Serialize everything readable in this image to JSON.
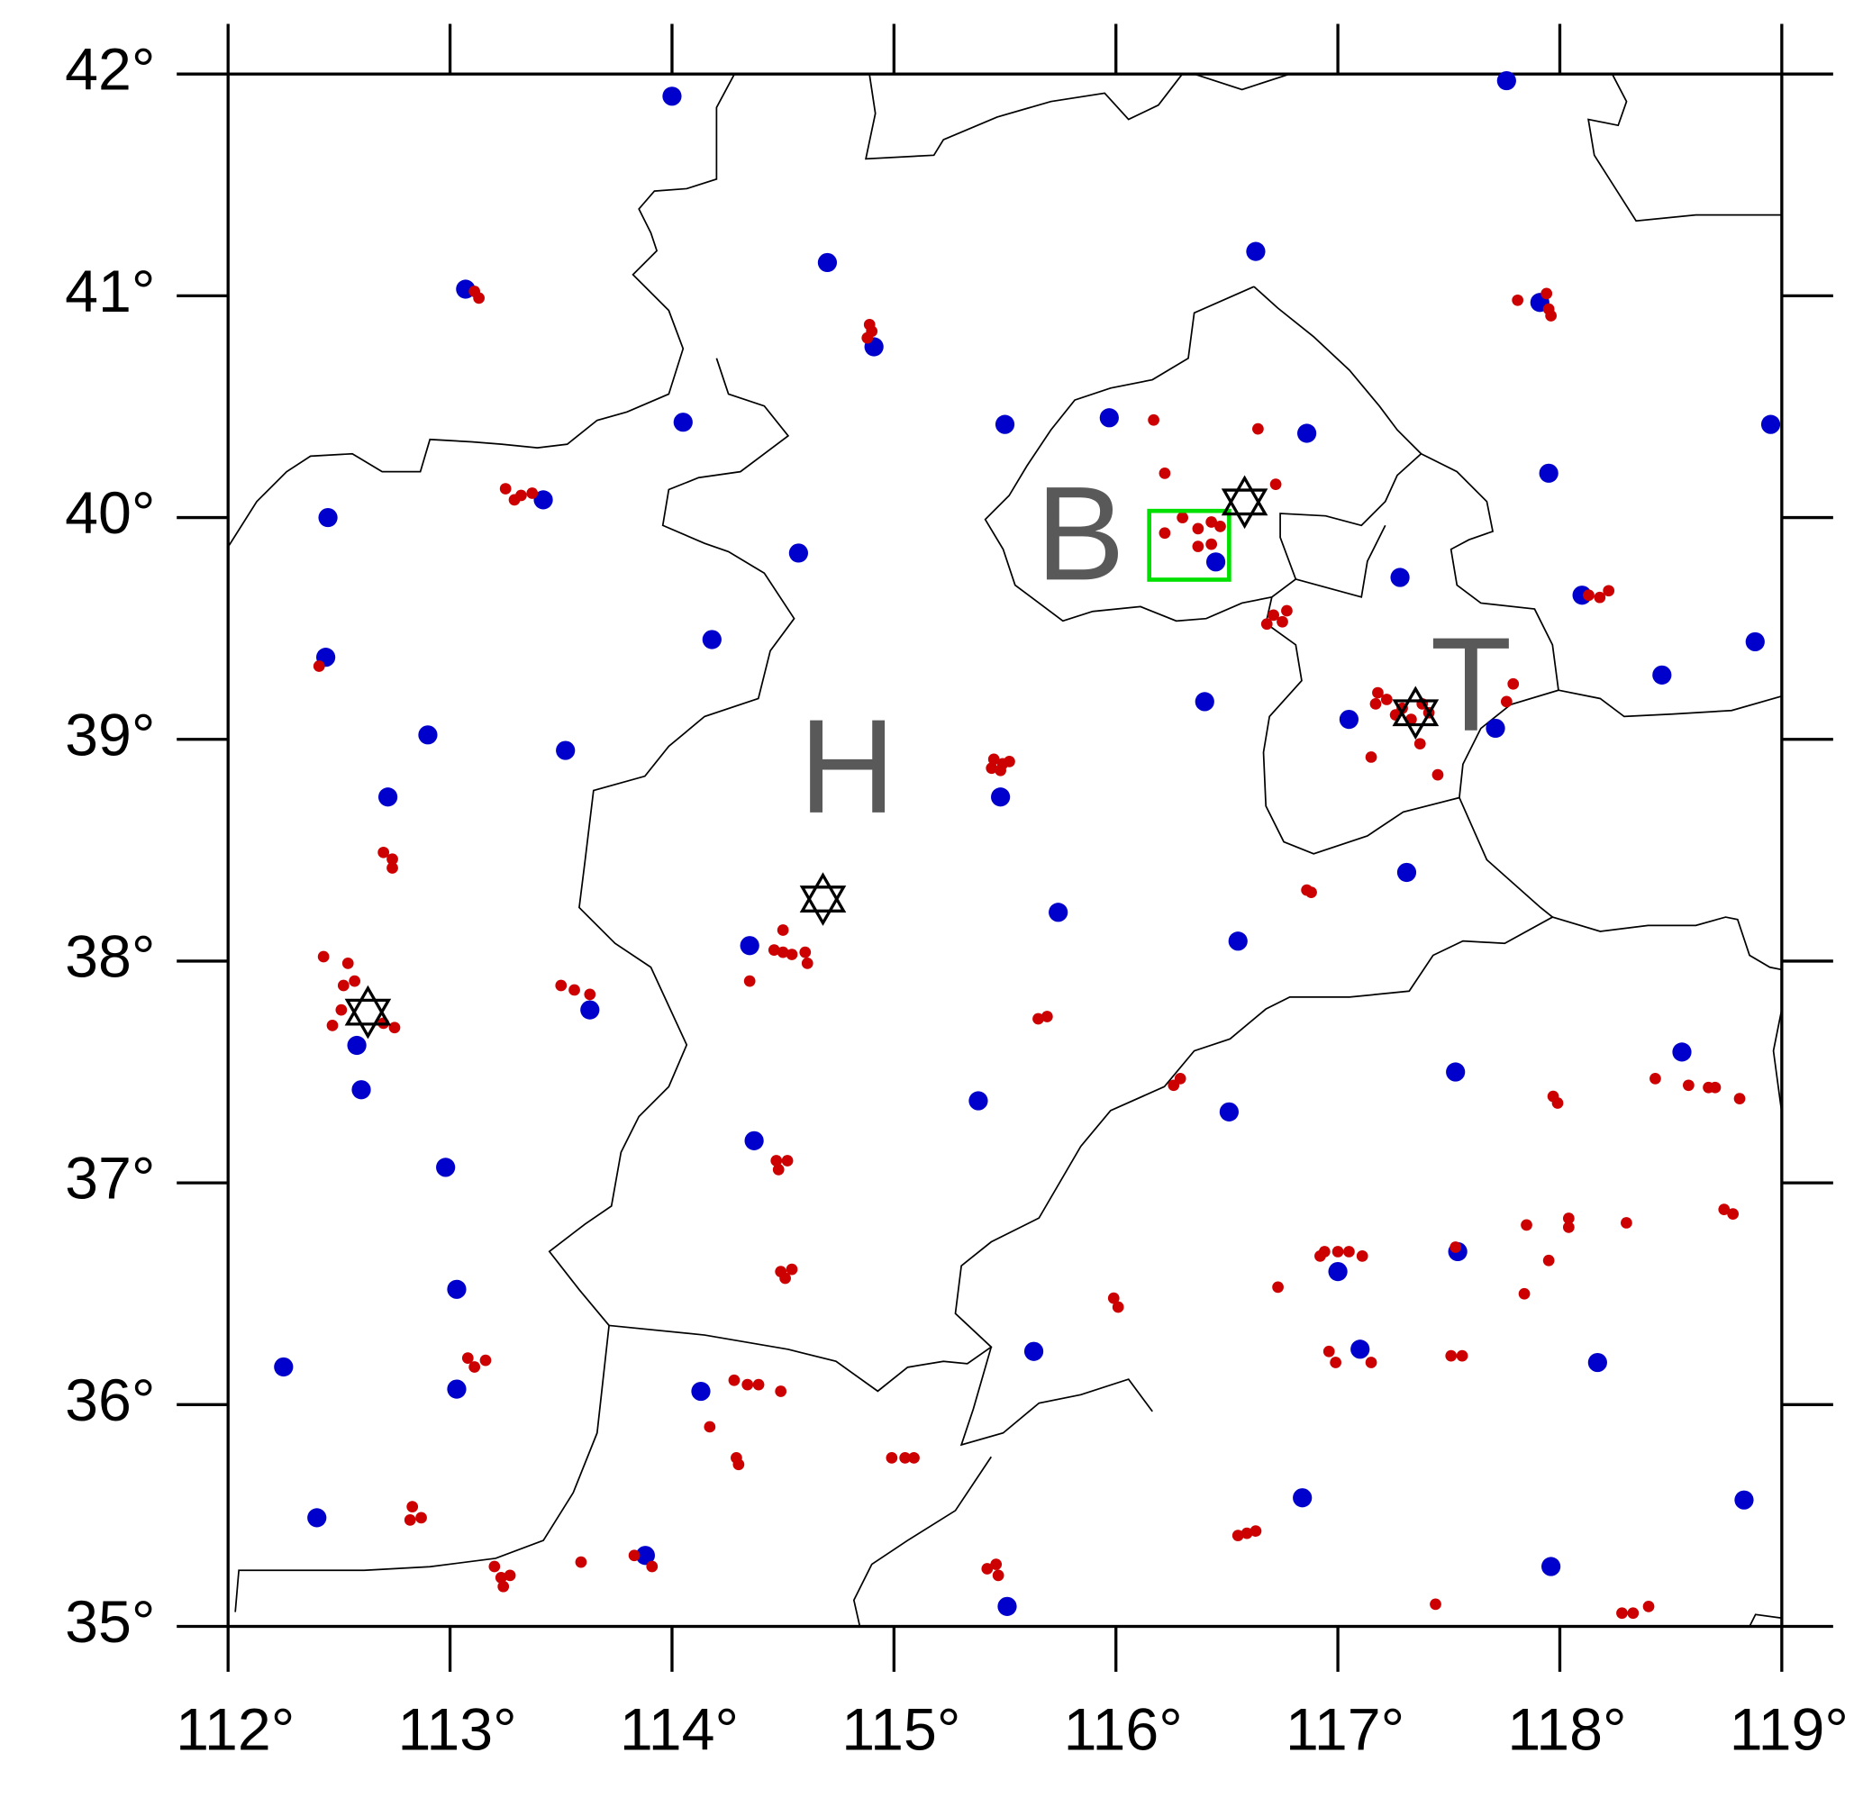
{
  "chart_data": {
    "type": "scatter",
    "xlim": [
      112,
      119
    ],
    "ylim": [
      35,
      42
    ],
    "xticks": [
      {
        "value": 112,
        "label": "112°"
      },
      {
        "value": 113,
        "label": "113°"
      },
      {
        "value": 114,
        "label": "114°"
      },
      {
        "value": 115,
        "label": "115°"
      },
      {
        "value": 116,
        "label": "116°"
      },
      {
        "value": 117,
        "label": "117°"
      },
      {
        "value": 118,
        "label": "118°"
      },
      {
        "value": 119,
        "label": "119°"
      }
    ],
    "yticks": [
      {
        "value": 35,
        "label": "35°"
      },
      {
        "value": 36,
        "label": "36°"
      },
      {
        "value": 37,
        "label": "37°"
      },
      {
        "value": 38,
        "label": "38°"
      },
      {
        "value": 39,
        "label": "39°"
      },
      {
        "value": 40,
        "label": "40°"
      },
      {
        "value": 41,
        "label": "41°"
      },
      {
        "value": 42,
        "label": "42°"
      }
    ],
    "series": [
      {
        "color": "#0000cc",
        "x": [
          114.0,
          113.07,
          114.7,
          116.63,
          117.76,
          117.91,
          114.91,
          114.05,
          115.5,
          115.97,
          116.86,
          117.95,
          118.95,
          112.45,
          113.42,
          114.57,
          116.45,
          117.28,
          118.1,
          114.18,
          112.44,
          118.88,
          118.46,
          112.9,
          113.52,
          116.4,
          117.05,
          117.71,
          115.48,
          112.72,
          117.31,
          115.74,
          116.55,
          114.35,
          113.63,
          112.58,
          112.6,
          118.55,
          117.53,
          115.38,
          116.51,
          114.37,
          112.98,
          117.54,
          117.0,
          113.03,
          115.63,
          117.1,
          118.17,
          112.25,
          113.03,
          114.13,
          116.84,
          118.83,
          112.4,
          113.88,
          117.96,
          115.51
        ],
        "y": [
          41.9,
          41.03,
          41.15,
          41.2,
          41.97,
          40.97,
          40.77,
          40.43,
          40.42,
          40.45,
          40.38,
          40.2,
          40.42,
          40.0,
          40.08,
          39.84,
          39.8,
          39.73,
          39.65,
          39.45,
          39.37,
          39.44,
          39.29,
          39.02,
          38.95,
          39.17,
          39.09,
          39.05,
          38.74,
          38.74,
          38.4,
          38.22,
          38.09,
          38.07,
          37.78,
          37.62,
          37.42,
          37.59,
          37.5,
          37.37,
          37.32,
          37.19,
          37.07,
          36.69,
          36.6,
          36.52,
          36.24,
          36.25,
          36.19,
          36.17,
          36.07,
          36.06,
          35.58,
          35.57,
          35.49,
          35.32,
          35.27,
          35.09
        ]
      },
      {
        "color": "#cc0000",
        "x": [
          113.11,
          113.13,
          114.89,
          114.9,
          114.88,
          113.25,
          113.29,
          113.32,
          113.37,
          116.17,
          116.22,
          116.64,
          116.72,
          116.3,
          116.37,
          116.43,
          116.22,
          116.37,
          116.43,
          116.47,
          116.68,
          116.71,
          116.77,
          116.75,
          117.81,
          117.94,
          117.95,
          117.96,
          118.13,
          118.18,
          118.22,
          117.17,
          117.18,
          117.22,
          117.26,
          117.29,
          117.33,
          117.38,
          117.41,
          117.79,
          117.76,
          117.15,
          117.37,
          117.45,
          112.41,
          112.7,
          112.74,
          112.74,
          115.45,
          115.49,
          115.52,
          115.44,
          115.48,
          114.5,
          114.46,
          114.5,
          114.54,
          114.6,
          114.61,
          114.35,
          112.43,
          112.54,
          112.57,
          112.52,
          112.51,
          112.47,
          112.7,
          112.75,
          113.5,
          113.56,
          113.63,
          116.86,
          116.88,
          115.69,
          115.65,
          116.29,
          116.26,
          114.47,
          114.52,
          114.48,
          114.49,
          114.54,
          114.51,
          116.92,
          116.94,
          117.0,
          117.05,
          117.11,
          116.73,
          117.53,
          117.85,
          118.04,
          118.04,
          118.3,
          117.95,
          117.84,
          117.97,
          117.99,
          118.43,
          118.58,
          118.67,
          118.7,
          118.81,
          118.74,
          118.78,
          115.99,
          116.01,
          113.08,
          113.11,
          113.16,
          114.28,
          114.34,
          114.39,
          114.49,
          114.17,
          114.29,
          114.3,
          114.99,
          115.05,
          115.09,
          112.83,
          112.82,
          112.87,
          113.2,
          113.23,
          113.27,
          113.24,
          113.59,
          113.83,
          113.91,
          115.42,
          115.46,
          115.47,
          116.55,
          116.59,
          116.63,
          116.96,
          116.99,
          117.15,
          117.51,
          117.56,
          117.44,
          118.28,
          118.33,
          118.4
        ],
        "y": [
          41.02,
          40.99,
          40.87,
          40.84,
          40.81,
          40.13,
          40.08,
          40.1,
          40.11,
          40.44,
          40.2,
          40.4,
          40.15,
          40.0,
          39.95,
          39.98,
          39.93,
          39.87,
          39.88,
          39.96,
          39.52,
          39.56,
          39.58,
          39.53,
          40.98,
          41.01,
          40.94,
          40.91,
          39.65,
          39.64,
          39.67,
          39.16,
          39.21,
          39.18,
          39.11,
          39.14,
          39.09,
          39.16,
          39.12,
          39.25,
          39.17,
          38.92,
          38.98,
          38.84,
          39.33,
          38.49,
          38.46,
          38.42,
          38.91,
          38.89,
          38.9,
          38.87,
          38.86,
          38.14,
          38.05,
          38.04,
          38.03,
          38.04,
          37.99,
          37.91,
          38.02,
          37.99,
          37.91,
          37.89,
          37.78,
          37.71,
          37.72,
          37.7,
          37.89,
          37.87,
          37.85,
          38.32,
          38.31,
          37.75,
          37.74,
          37.47,
          37.44,
          37.1,
          37.1,
          37.06,
          36.6,
          36.61,
          36.57,
          36.67,
          36.69,
          36.69,
          36.69,
          36.67,
          36.53,
          36.71,
          36.81,
          36.84,
          36.8,
          36.82,
          36.65,
          36.5,
          37.39,
          37.36,
          37.47,
          37.44,
          37.43,
          37.43,
          37.38,
          36.88,
          36.86,
          36.48,
          36.44,
          36.21,
          36.17,
          36.2,
          36.11,
          36.09,
          36.09,
          36.06,
          35.9,
          35.76,
          35.73,
          35.76,
          35.76,
          35.76,
          35.54,
          35.48,
          35.49,
          35.27,
          35.22,
          35.23,
          35.18,
          35.29,
          35.32,
          35.27,
          35.26,
          35.28,
          35.23,
          35.41,
          35.42,
          35.43,
          36.24,
          36.19,
          36.19,
          36.22,
          36.22,
          35.1,
          35.06,
          35.06,
          35.09
        ]
      }
    ],
    "stars": {
      "color": "#000000",
      "x": [
        116.58,
        117.35,
        114.68,
        112.63
      ],
      "y": [
        40.07,
        39.12,
        38.28,
        37.77
      ]
    },
    "labels": [
      {
        "text": "B",
        "x": 115.84,
        "y": 39.88
      },
      {
        "text": "H",
        "x": 114.79,
        "y": 38.83
      },
      {
        "text": "T",
        "x": 117.6,
        "y": 39.2
      }
    ],
    "box": {
      "color": "#00e000",
      "xlim": [
        116.15,
        116.51
      ],
      "ylim": [
        39.72,
        40.03
      ]
    }
  }
}
